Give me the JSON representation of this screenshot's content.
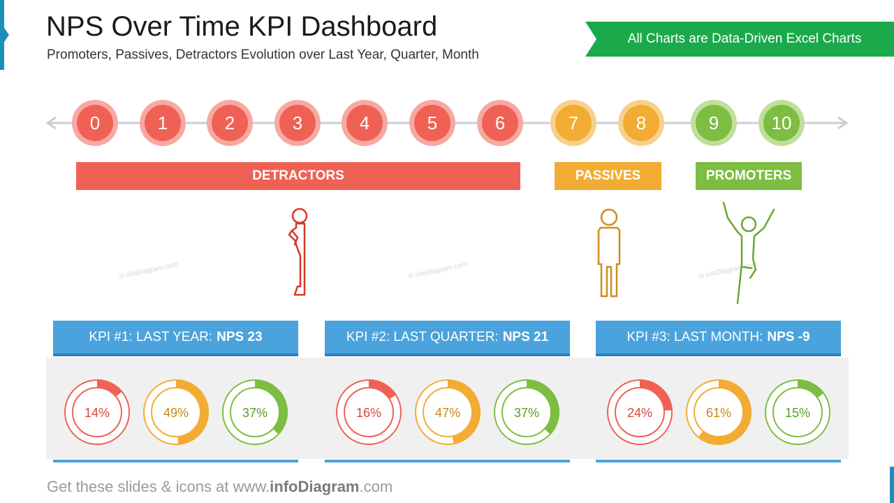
{
  "header": {
    "title": "NPS Over Time KPI Dashboard",
    "subtitle": "Promoters, Passives,  Detractors Evolution over Last Year, Quarter, Month",
    "banner": "All Charts are Data-Driven Excel Charts"
  },
  "scale": {
    "numbers": [
      "0",
      "1",
      "2",
      "3",
      "4",
      "5",
      "6",
      "7",
      "8",
      "9",
      "10"
    ],
    "groups": [
      "detractor",
      "detractor",
      "detractor",
      "detractor",
      "detractor",
      "detractor",
      "detractor",
      "passive",
      "passive",
      "promoter",
      "promoter"
    ]
  },
  "categories": {
    "detractors": "DETRACTORS",
    "passives": "PASSIVES",
    "promoters": "PROMOTERS"
  },
  "colors": {
    "detractor": "#ef6154",
    "passive": "#f2ac33",
    "promoter": "#7dbd42",
    "kpi_header": "#4aa3dc",
    "banner": "#1aaa4b"
  },
  "icons": [
    "sad-person-icon",
    "neutral-person-icon",
    "happy-person-icon"
  ],
  "watermark": "© infoDiagram.com",
  "kpis": [
    {
      "label": "KPI #1: LAST YEAR:",
      "nps": "NPS 23",
      "detractors_label": "14%",
      "detractors_value": 14,
      "passives_label": "49%",
      "passives_value": 49,
      "promoters_label": "37%",
      "promoters_value": 37
    },
    {
      "label": "KPI #2: LAST QUARTER:",
      "nps": "NPS 21",
      "detractors_label": "16%",
      "detractors_value": 16,
      "passives_label": "47%",
      "passives_value": 47,
      "promoters_label": "37%",
      "promoters_value": 37
    },
    {
      "label": "KPI #3: LAST MONTH:",
      "nps": "NPS -9",
      "detractors_label": "24%",
      "detractors_value": 24,
      "passives_label": "61%",
      "passives_value": 61,
      "promoters_label": "15%",
      "promoters_value": 15
    }
  ],
  "footer": {
    "prefix": "Get these slides & icons at www.",
    "brand": "infoDiagram",
    "suffix": ".com"
  }
}
